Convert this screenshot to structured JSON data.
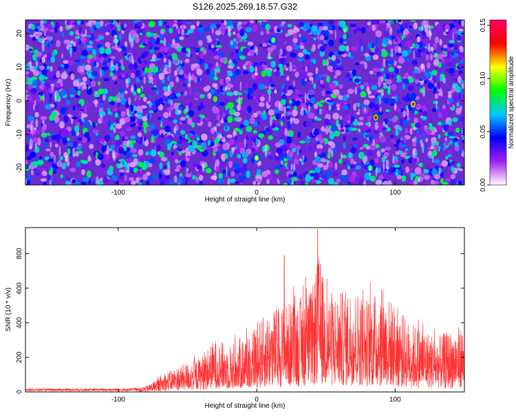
{
  "title": "S126.2025.269.18.57.G32",
  "chart_data": [
    {
      "type": "heatmap",
      "title": "S126.2025.269.18.57.G32",
      "xlabel": "Height of straight line (km)",
      "ylabel": "Frequency (Hz)",
      "xlim": [
        -167,
        150
      ],
      "ylim": [
        -25,
        24
      ],
      "xticks": [
        -100,
        0,
        100
      ],
      "yticks": [
        -20,
        -10,
        0,
        10,
        20
      ],
      "colorbar": {
        "label": "Normalized spectral amplitude",
        "range": [
          0,
          0.155
        ],
        "ticks": [
          "0.00",
          "0.05",
          "0.10",
          "0.15"
        ],
        "colors": [
          "#ffffff",
          "#a020f0",
          "#0000ff",
          "#00c8ff",
          "#00ff00",
          "#ffff00",
          "#ff0000",
          "#ff0066"
        ]
      },
      "hotspots": [
        {
          "x": 113,
          "y": -1,
          "v": 0.15
        },
        {
          "x": 86,
          "y": -5,
          "v": 0.14
        },
        {
          "x": -30,
          "y": 0.5,
          "v": 0.12
        },
        {
          "x": -85,
          "y": 3,
          "v": 0.11
        },
        {
          "x": 0,
          "y": -17,
          "v": 0.11
        },
        {
          "x": 82,
          "y": -20,
          "v": 0.1
        },
        {
          "x": 12,
          "y": 18,
          "v": 0.1
        }
      ]
    },
    {
      "type": "line",
      "xlabel": "Height of straight line (km)",
      "ylabel": "SNR (10 * v/v)",
      "xlim": [
        -167,
        150
      ],
      "ylim": [
        0,
        950
      ],
      "xticks": [
        -100,
        0,
        100
      ],
      "yticks": [
        0,
        200,
        400,
        600,
        800
      ],
      "color": "#ff3333",
      "envelope_x": [
        -167,
        -90,
        -80,
        -60,
        -40,
        -30,
        -20,
        -10,
        0,
        10,
        20,
        30,
        40,
        45,
        50,
        60,
        70,
        80,
        90,
        100,
        110,
        120,
        130,
        140,
        150
      ],
      "envelope_y": [
        18,
        20,
        40,
        160,
        240,
        360,
        320,
        380,
        470,
        560,
        600,
        640,
        700,
        940,
        700,
        680,
        720,
        640,
        700,
        600,
        480,
        440,
        380,
        420,
        460
      ],
      "peaks": [
        {
          "x": 44,
          "y": 940
        },
        {
          "x": 20,
          "y": 790
        }
      ]
    }
  ]
}
